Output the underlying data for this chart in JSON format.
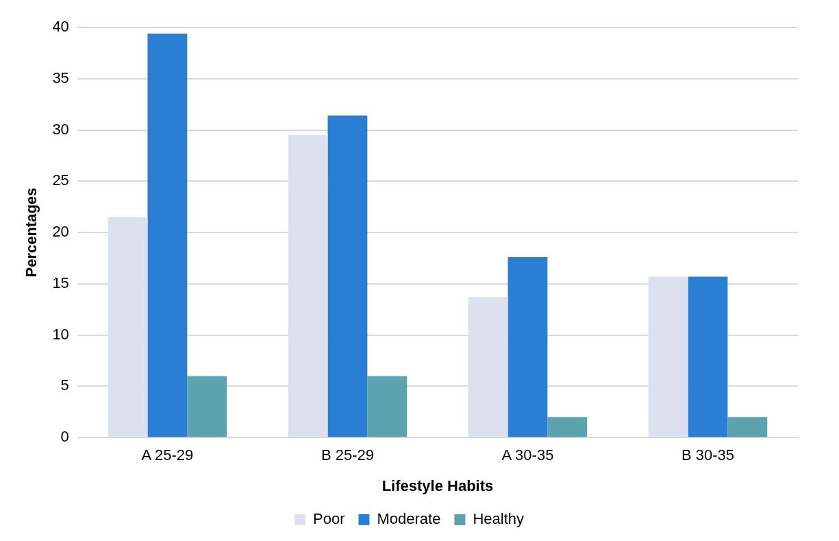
{
  "chart_data": {
    "type": "bar",
    "xlabel": "Lifestyle Habits",
    "ylabel": "Percentages",
    "categories": [
      "A 25-29",
      "B 25-29",
      "A 30-35",
      "B 30-35"
    ],
    "series": [
      {
        "name": "Poor",
        "color": "#dde1ef",
        "values": [
          21.5,
          29.5,
          13.7,
          15.7
        ]
      },
      {
        "name": "Moderate",
        "color": "#2a7fd4",
        "values": [
          39.4,
          31.4,
          17.6,
          15.7
        ]
      },
      {
        "name": "Healthy",
        "color": "#5ba3ae",
        "values": [
          6,
          6,
          2,
          2
        ]
      }
    ],
    "ylim": [
      0,
      40
    ],
    "yticks": [
      0,
      5,
      10,
      15,
      20,
      25,
      30,
      35,
      40
    ],
    "grid": "y",
    "legend": "bottom"
  }
}
